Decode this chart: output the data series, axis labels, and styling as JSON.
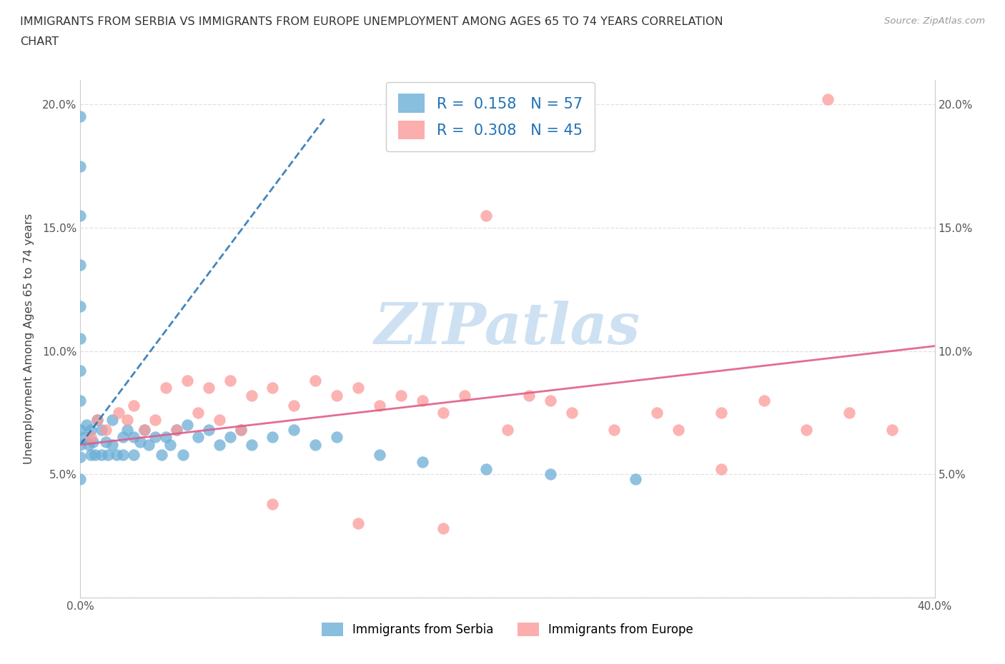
{
  "title_line1": "IMMIGRANTS FROM SERBIA VS IMMIGRANTS FROM EUROPE UNEMPLOYMENT AMONG AGES 65 TO 74 YEARS CORRELATION",
  "title_line2": "CHART",
  "source_text": "Source: ZipAtlas.com",
  "ylabel": "Unemployment Among Ages 65 to 74 years",
  "x_min": 0.0,
  "x_max": 0.4,
  "y_min": 0.0,
  "y_max": 0.21,
  "serbia_color": "#6baed6",
  "serbia_edge_color": "#4292c6",
  "europe_color": "#fb9a99",
  "europe_edge_color": "#f768a1",
  "serbia_line_color": "#2171b5",
  "europe_line_color": "#e05c8a",
  "serbia_R": 0.158,
  "serbia_N": 57,
  "europe_R": 0.308,
  "europe_N": 45,
  "legend_label_1": "Immigrants from Serbia",
  "legend_label_2": "Immigrants from Europe",
  "r_color": "#2171b5",
  "n_color": "#2171b5",
  "serbia_x": [
    0.0,
    0.0,
    0.0,
    0.0,
    0.0,
    0.0,
    0.0,
    0.0,
    0.0,
    0.0,
    0.0,
    0.0,
    0.002,
    0.003,
    0.004,
    0.005,
    0.005,
    0.006,
    0.007,
    0.008,
    0.01,
    0.01,
    0.012,
    0.013,
    0.015,
    0.015,
    0.017,
    0.02,
    0.02,
    0.022,
    0.025,
    0.025,
    0.028,
    0.03,
    0.032,
    0.035,
    0.038,
    0.04,
    0.042,
    0.045,
    0.048,
    0.05,
    0.055,
    0.06,
    0.065,
    0.07,
    0.075,
    0.08,
    0.09,
    0.1,
    0.11,
    0.12,
    0.14,
    0.16,
    0.19,
    0.22,
    0.26
  ],
  "serbia_y": [
    0.195,
    0.175,
    0.155,
    0.135,
    0.118,
    0.105,
    0.092,
    0.08,
    0.068,
    0.062,
    0.057,
    0.048,
    0.065,
    0.07,
    0.062,
    0.068,
    0.058,
    0.063,
    0.058,
    0.072,
    0.068,
    0.058,
    0.063,
    0.058,
    0.072,
    0.062,
    0.058,
    0.065,
    0.058,
    0.068,
    0.065,
    0.058,
    0.063,
    0.068,
    0.062,
    0.065,
    0.058,
    0.065,
    0.062,
    0.068,
    0.058,
    0.07,
    0.065,
    0.068,
    0.062,
    0.065,
    0.068,
    0.062,
    0.065,
    0.068,
    0.062,
    0.065,
    0.058,
    0.055,
    0.052,
    0.05,
    0.048
  ],
  "europe_x": [
    0.005,
    0.008,
    0.012,
    0.018,
    0.022,
    0.025,
    0.03,
    0.035,
    0.04,
    0.045,
    0.05,
    0.055,
    0.06,
    0.065,
    0.07,
    0.075,
    0.08,
    0.09,
    0.1,
    0.11,
    0.12,
    0.13,
    0.14,
    0.15,
    0.16,
    0.17,
    0.18,
    0.19,
    0.2,
    0.21,
    0.22,
    0.23,
    0.25,
    0.27,
    0.28,
    0.3,
    0.32,
    0.34,
    0.36,
    0.38,
    0.13,
    0.09,
    0.17,
    0.3,
    0.35
  ],
  "europe_y": [
    0.065,
    0.072,
    0.068,
    0.075,
    0.072,
    0.078,
    0.068,
    0.072,
    0.085,
    0.068,
    0.088,
    0.075,
    0.085,
    0.072,
    0.088,
    0.068,
    0.082,
    0.085,
    0.078,
    0.088,
    0.082,
    0.085,
    0.078,
    0.082,
    0.08,
    0.075,
    0.082,
    0.155,
    0.068,
    0.082,
    0.08,
    0.075,
    0.068,
    0.075,
    0.068,
    0.075,
    0.08,
    0.068,
    0.075,
    0.068,
    0.03,
    0.038,
    0.028,
    0.052,
    0.202
  ],
  "serbia_line_x0": 0.0,
  "serbia_line_x1": 0.115,
  "serbia_line_y0": 0.062,
  "serbia_line_y1": 0.195,
  "europe_line_x0": 0.0,
  "europe_line_x1": 0.4,
  "europe_line_y0": 0.062,
  "europe_line_y1": 0.102,
  "watermark_text": "ZIPatlas",
  "watermark_color": "#c6dcf0",
  "grid_color": "#e0e0e0",
  "spine_color": "#cccccc"
}
